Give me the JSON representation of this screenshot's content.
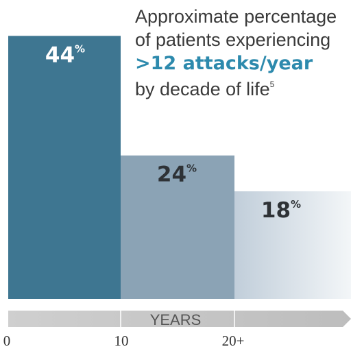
{
  "chart_data": {
    "type": "bar",
    "title_lines": [
      "Approximate percentage",
      "of patients experiencing",
      ">12 attacks/year",
      "by decade of life"
    ],
    "title_superscript": "5",
    "value_suffix": "%",
    "values": [
      44,
      24,
      18
    ],
    "value_labels": [
      "44",
      "24",
      "18"
    ],
    "x_ticks": [
      "0",
      "10",
      "20+"
    ],
    "xlabel": "YEARS",
    "ylim": [
      0,
      50
    ],
    "colors": [
      "#3e7691",
      "#8ba3b5",
      "#c1ceda"
    ]
  }
}
